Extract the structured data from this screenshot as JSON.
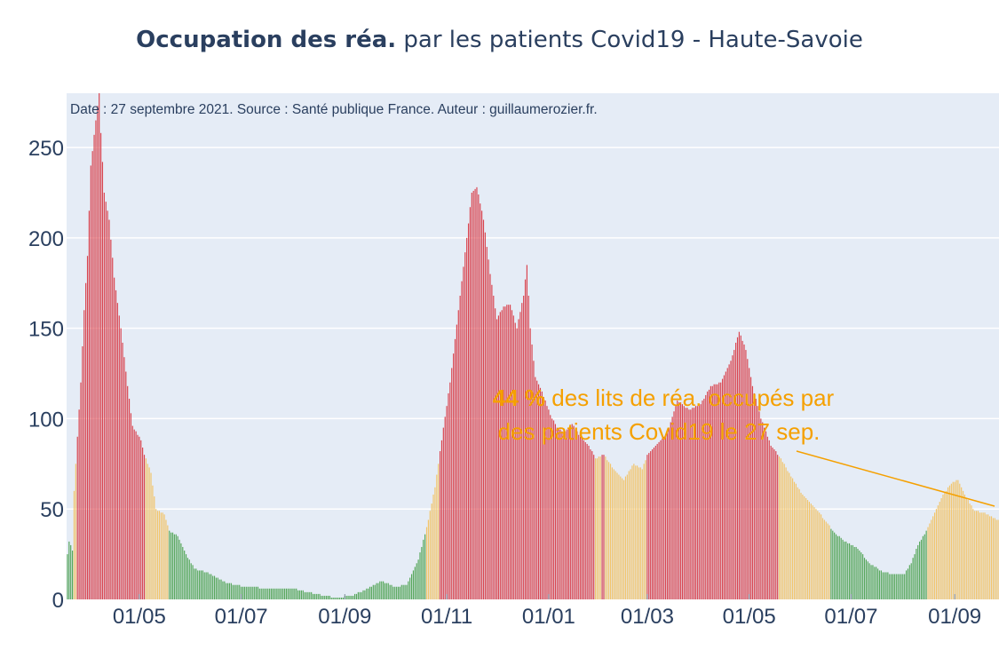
{
  "title": {
    "bold": "Occupation des réa.",
    "rest": " par les patients Covid19 - Haute-Savoie"
  },
  "source_note": "Date : 27 septembre 2021. Source : Santé publique France. Auteur : guillaumerozier.fr.",
  "annotation": {
    "line1_bold": "44  %",
    "line1_rest": " des lits de réa. occupés par",
    "line2": "des patients Covid19 le 27 sep."
  },
  "colors": {
    "plot_bg": "#e5ecf6",
    "grid": "#ffffff",
    "text": "#2a3f5f",
    "high": "#d9434e",
    "medium": "#f2c46a",
    "low": "#55a659",
    "annotation": "#f5a000"
  },
  "chart_data": {
    "type": "bar",
    "xlabel": "",
    "ylabel": "",
    "x_range": [
      "2020-03-19",
      "2021-09-27"
    ],
    "ylim": [
      0,
      280
    ],
    "y_ticks": [
      0,
      50,
      100,
      150,
      200,
      250
    ],
    "x_ticks": [
      {
        "date": "2020-05-01",
        "label": "01/05"
      },
      {
        "date": "2020-07-01",
        "label": "01/07"
      },
      {
        "date": "2020-09-01",
        "label": "01/09"
      },
      {
        "date": "2020-11-01",
        "label": "01/11"
      },
      {
        "date": "2021-01-01",
        "label": "01/01"
      },
      {
        "date": "2021-03-01",
        "label": "01/03"
      },
      {
        "date": "2021-05-01",
        "label": "01/05"
      },
      {
        "date": "2021-07-01",
        "label": "01/07"
      },
      {
        "date": "2021-09-01",
        "label": "01/09"
      }
    ],
    "color_rule": "red when value >= 80, yellow when 40-79, green when below 40",
    "series_keyframes": [
      [
        "2020-03-19",
        25
      ],
      [
        "2020-03-20",
        32
      ],
      [
        "2020-03-22",
        27
      ],
      [
        "2020-03-23",
        60
      ],
      [
        "2020-03-25",
        90
      ],
      [
        "2020-03-27",
        120
      ],
      [
        "2020-03-29",
        160
      ],
      [
        "2020-03-31",
        190
      ],
      [
        "2020-04-02",
        240
      ],
      [
        "2020-04-05",
        265
      ],
      [
        "2020-04-07",
        280
      ],
      [
        "2020-04-08",
        258
      ],
      [
        "2020-04-10",
        225
      ],
      [
        "2020-04-13",
        210
      ],
      [
        "2020-04-16",
        178
      ],
      [
        "2020-04-20",
        150
      ],
      [
        "2020-04-24",
        118
      ],
      [
        "2020-04-27",
        96
      ],
      [
        "2020-05-02",
        88
      ],
      [
        "2020-05-04",
        80
      ],
      [
        "2020-05-08",
        70
      ],
      [
        "2020-05-11",
        50
      ],
      [
        "2020-05-16",
        47
      ],
      [
        "2020-05-19",
        38
      ],
      [
        "2020-05-24",
        35
      ],
      [
        "2020-05-29",
        25
      ],
      [
        "2020-06-03",
        17
      ],
      [
        "2020-06-10",
        15
      ],
      [
        "2020-06-20",
        10
      ],
      [
        "2020-06-27",
        8
      ],
      [
        "2020-07-03",
        7
      ],
      [
        "2020-07-20",
        6
      ],
      [
        "2020-08-01",
        6
      ],
      [
        "2020-08-10",
        4
      ],
      [
        "2020-08-20",
        2
      ],
      [
        "2020-08-27",
        1
      ],
      [
        "2020-09-05",
        2
      ],
      [
        "2020-09-15",
        6
      ],
      [
        "2020-09-23",
        10
      ],
      [
        "2020-10-01",
        7
      ],
      [
        "2020-10-08",
        8
      ],
      [
        "2020-10-15",
        22
      ],
      [
        "2020-10-20",
        40
      ],
      [
        "2020-10-25",
        62
      ],
      [
        "2020-10-28",
        82
      ],
      [
        "2020-11-03",
        120
      ],
      [
        "2020-11-08",
        160
      ],
      [
        "2020-11-13",
        200
      ],
      [
        "2020-11-16",
        225
      ],
      [
        "2020-11-19",
        228
      ],
      [
        "2020-11-23",
        210
      ],
      [
        "2020-11-27",
        180
      ],
      [
        "2020-12-01",
        155
      ],
      [
        "2020-12-05",
        162
      ],
      [
        "2020-12-09",
        163
      ],
      [
        "2020-12-13",
        150
      ],
      [
        "2020-12-17",
        168
      ],
      [
        "2020-12-19",
        185
      ],
      [
        "2020-12-21",
        150
      ],
      [
        "2020-12-24",
        123
      ],
      [
        "2020-12-28",
        115
      ],
      [
        "2021-01-02",
        102
      ],
      [
        "2021-01-06",
        95
      ],
      [
        "2021-01-10",
        92
      ],
      [
        "2021-01-15",
        97
      ],
      [
        "2021-01-20",
        90
      ],
      [
        "2021-01-25",
        85
      ],
      [
        "2021-01-29",
        78
      ],
      [
        "2021-02-03",
        80
      ],
      [
        "2021-02-09",
        72
      ],
      [
        "2021-02-15",
        66
      ],
      [
        "2021-02-21",
        75
      ],
      [
        "2021-02-26",
        72
      ],
      [
        "2021-03-01",
        80
      ],
      [
        "2021-03-06",
        85
      ],
      [
        "2021-03-13",
        92
      ],
      [
        "2021-03-19",
        110
      ],
      [
        "2021-03-26",
        105
      ],
      [
        "2021-04-02",
        108
      ],
      [
        "2021-04-08",
        118
      ],
      [
        "2021-04-14",
        120
      ],
      [
        "2021-04-20",
        132
      ],
      [
        "2021-04-25",
        148
      ],
      [
        "2021-04-29",
        138
      ],
      [
        "2021-05-03",
        118
      ],
      [
        "2021-05-08",
        100
      ],
      [
        "2021-05-14",
        85
      ],
      [
        "2021-05-20",
        78
      ],
      [
        "2021-05-26",
        68
      ],
      [
        "2021-06-02",
        58
      ],
      [
        "2021-06-10",
        50
      ],
      [
        "2021-06-17",
        42
      ],
      [
        "2021-06-20",
        38
      ],
      [
        "2021-06-27",
        32
      ],
      [
        "2021-07-05",
        28
      ],
      [
        "2021-07-12",
        20
      ],
      [
        "2021-07-20",
        15
      ],
      [
        "2021-07-27",
        14
      ],
      [
        "2021-08-02",
        14
      ],
      [
        "2021-08-06",
        20
      ],
      [
        "2021-08-10",
        30
      ],
      [
        "2021-08-15",
        38
      ],
      [
        "2021-08-20",
        48
      ],
      [
        "2021-08-25",
        58
      ],
      [
        "2021-08-30",
        64
      ],
      [
        "2021-09-03",
        66
      ],
      [
        "2021-09-08",
        56
      ],
      [
        "2021-09-13",
        49
      ],
      [
        "2021-09-18",
        48
      ],
      [
        "2021-09-22",
        46
      ],
      [
        "2021-09-27",
        44
      ]
    ]
  }
}
